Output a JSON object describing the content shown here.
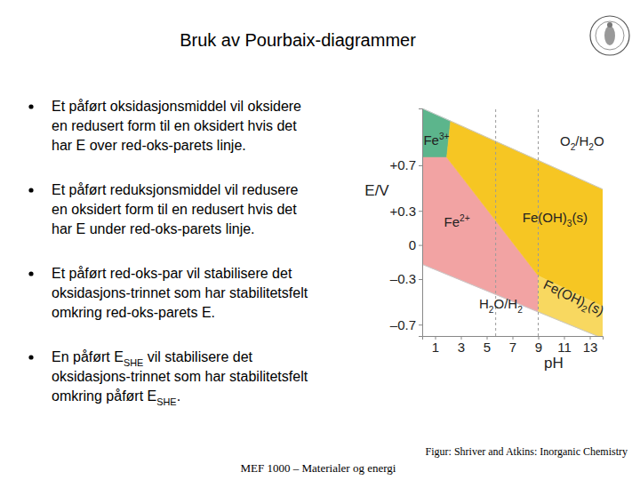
{
  "slide": {
    "title": "Bruk av Pourbaix-diagrammer",
    "bullets": [
      [
        [
          "Et påført oksidasjonsmiddel vil oksidere"
        ],
        [
          "en redusert form til en oksidert hvis det"
        ],
        [
          "har E over red-oks-parets linje."
        ]
      ],
      [
        [
          "Et påført reduksjonsmiddel vil redusere"
        ],
        [
          "en oksidert form til en redusert hvis det"
        ],
        [
          "har E under red-oks-parets linje."
        ]
      ],
      [
        [
          "Et påført red-oks-par vil stabilisere det"
        ],
        [
          "oksidasjons-trinnet som har stabilitetsfelt"
        ],
        [
          "omkring red-oks-parets E."
        ]
      ],
      [
        [
          "En påført E",
          {
            "sub": "SHE"
          },
          " vil stabilisere det"
        ],
        [
          "oksidasjons-trinnet som har stabilitetsfelt"
        ],
        [
          "omkring påført E",
          {
            "sub": "SHE"
          },
          "."
        ]
      ]
    ],
    "caption": "Figur: Shriver and Atkins: Inorganic Chemistry",
    "footer": "MEF 1000 – Materialer og energi"
  },
  "chart_data": {
    "type": "region",
    "xlabel": "pH",
    "ylabel": "E/V",
    "xlim": [
      0,
      14
    ],
    "xticks": [
      1,
      3,
      5,
      7,
      9,
      11,
      13
    ],
    "ylim": [
      -0.8,
      1.2
    ],
    "yticks": [
      {
        "value": 0.7,
        "label": "+0.7"
      },
      {
        "value": 0.3,
        "label": "+0.3"
      },
      0,
      {
        "value": -0.3,
        "label": "–0.3"
      },
      {
        "value": -0.7,
        "label": "–0.7"
      }
    ],
    "grid": false,
    "regions": [
      {
        "name": [
          "Fe",
          {
            "sup": "3+"
          }
        ],
        "color": "#5cb58c",
        "points": [
          [
            0,
            1.2
          ],
          [
            2.2,
            1.09
          ],
          [
            1.9,
            0.77
          ],
          [
            0,
            0.77
          ]
        ],
        "label_x": 1.1,
        "label_y": 0.88
      },
      {
        "name": [
          "Fe",
          {
            "sup": "2+"
          }
        ],
        "color": "#f2a3a3",
        "points": [
          [
            0,
            0.77
          ],
          [
            1.9,
            0.77
          ],
          [
            9,
            -0.27
          ],
          [
            9,
            -0.59
          ],
          [
            0,
            -0.17
          ]
        ],
        "label_x": 2.7,
        "label_y": 0.16
      },
      {
        "name": [
          "Fe(OH)",
          {
            "sub": "3"
          },
          "(s)"
        ],
        "color": "#f6c623",
        "points": [
          [
            2.2,
            1.09
          ],
          [
            14,
            0.49
          ],
          [
            14,
            -0.54
          ],
          [
            9,
            -0.27
          ],
          [
            1.9,
            0.77
          ]
        ],
        "label_x": 10.3,
        "label_y": 0.2
      },
      {
        "name": [
          "Fe(OH)",
          {
            "sub": "2"
          },
          "(s)"
        ],
        "color": "#f8d860",
        "points": [
          [
            9,
            -0.27
          ],
          [
            14,
            -0.54
          ],
          [
            14,
            -0.82
          ],
          [
            9,
            -0.59
          ]
        ],
        "label_x": 11.6,
        "label_y": -0.5
      }
    ],
    "lines": [
      {
        "name": [
          "O",
          {
            "sub": "2"
          },
          "/H",
          {
            "sub": "2"
          },
          "O"
        ],
        "points": [
          [
            0,
            1.2
          ],
          [
            14,
            0.49
          ]
        ],
        "label_x": 12.4,
        "label_y": 0.87
      },
      {
        "name": [
          "H",
          {
            "sub": "2"
          },
          "O/H",
          {
            "sub": "2"
          }
        ],
        "points": [
          [
            0,
            -0.17
          ],
          [
            14,
            -0.82
          ]
        ],
        "label_x": 6.1,
        "label_y": -0.56
      }
    ],
    "vlines": [
      5.7,
      9
    ],
    "line_style": "dashed"
  }
}
